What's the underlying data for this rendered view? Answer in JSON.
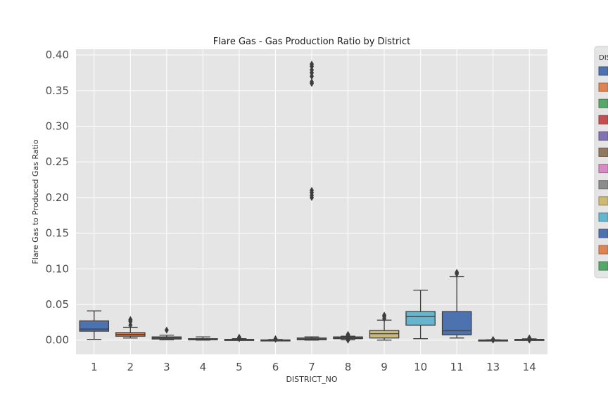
{
  "chart_data": {
    "type": "box",
    "title": "Flare Gas - Gas Production Ratio by District",
    "xlabel": "DISTRICT_NO",
    "ylabel": "Flare Gas to Produced Gas Ratio",
    "ylim": [
      -0.02,
      0.408
    ],
    "y_ticks": [
      "0.00",
      "0.05",
      "0.10",
      "0.15",
      "0.20",
      "0.25",
      "0.30",
      "0.35",
      "0.40"
    ],
    "grid": true,
    "legend": {
      "title": "DIS",
      "placement": "right, clipped at image edge"
    },
    "categories": [
      "1",
      "2",
      "3",
      "4",
      "5",
      "6",
      "7",
      "8",
      "9",
      "10",
      "11",
      "13",
      "14"
    ],
    "colors": [
      "#4c72b0",
      "#dd8452",
      "#55a868",
      "#c44e52",
      "#8172b3",
      "#937860",
      "#da8bc3",
      "#8c8c8c",
      "#ccb974",
      "#64b5cd",
      "#4c72b0",
      "#dd8452",
      "#55a868"
    ],
    "boxes": [
      {
        "district": "1",
        "whislo": 0.001,
        "q1": 0.0125,
        "med": 0.0155,
        "q3": 0.027,
        "whishi": 0.041,
        "fliers": []
      },
      {
        "district": "2",
        "whislo": 0.003,
        "q1": 0.0055,
        "med": 0.008,
        "q3": 0.0105,
        "whishi": 0.018,
        "fliers": [
          0.021,
          0.026,
          0.028,
          0.029
        ]
      },
      {
        "district": "3",
        "whislo": 0.0005,
        "q1": 0.0015,
        "med": 0.003,
        "q3": 0.0045,
        "whishi": 0.007,
        "fliers": [
          0.014
        ]
      },
      {
        "district": "4",
        "whislo": 0.0,
        "q1": 0.0005,
        "med": 0.001,
        "q3": 0.002,
        "whishi": 0.0045,
        "fliers": []
      },
      {
        "district": "5",
        "whislo": 0.0,
        "q1": 0.0002,
        "med": 0.0005,
        "q3": 0.001,
        "whishi": 0.002,
        "fliers": [
          0.002,
          0.003,
          0.004
        ]
      },
      {
        "district": "6",
        "whislo": 0.0,
        "q1": 0.0,
        "med": 0.0001,
        "q3": 0.0003,
        "whishi": 0.0008,
        "fliers": [
          0.0012,
          0.002
        ]
      },
      {
        "district": "7",
        "whislo": 0.0,
        "q1": 0.0005,
        "med": 0.0015,
        "q3": 0.003,
        "whishi": 0.0045,
        "fliers": [
          0.2,
          0.203,
          0.207,
          0.21,
          0.36,
          0.362,
          0.37,
          0.375,
          0.379,
          0.384,
          0.387
        ]
      },
      {
        "district": "8",
        "whislo": 0.0005,
        "q1": 0.002,
        "med": 0.003,
        "q3": 0.0045,
        "whishi": 0.0055,
        "fliers": [
          0.0,
          0.001,
          0.006,
          0.007,
          0.008
        ]
      },
      {
        "district": "9",
        "whislo": 0.0,
        "q1": 0.003,
        "med": 0.009,
        "q3": 0.0135,
        "whishi": 0.028,
        "fliers": [
          0.03,
          0.033,
          0.035
        ]
      },
      {
        "district": "10",
        "whislo": 0.002,
        "q1": 0.021,
        "med": 0.033,
        "q3": 0.04,
        "whishi": 0.07,
        "fliers": []
      },
      {
        "district": "11",
        "whislo": 0.003,
        "q1": 0.0075,
        "med": 0.013,
        "q3": 0.04,
        "whishi": 0.089,
        "fliers": [
          0.093,
          0.095
        ]
      },
      {
        "district": "13",
        "whislo": 0.0,
        "q1": 0.0,
        "med": 0.0,
        "q3": 0.0002,
        "whishi": 0.0005,
        "fliers": [
          0.0,
          0.0005,
          0.001
        ]
      },
      {
        "district": "14",
        "whislo": 0.0,
        "q1": 0.0002,
        "med": 0.0005,
        "q3": 0.001,
        "whishi": 0.0018,
        "fliers": [
          0.0,
          0.002,
          0.003
        ]
      }
    ]
  }
}
